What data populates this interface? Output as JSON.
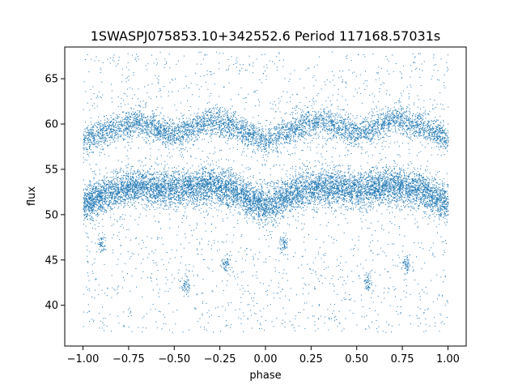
{
  "chart_data": {
    "type": "scatter",
    "title": "1SWASPJ075853.10+342552.6 Period 117168.57031s",
    "xlabel": "phase",
    "ylabel": "flux",
    "xlim": [
      -1.1,
      1.1
    ],
    "ylim": [
      35.5,
      68.5
    ],
    "x_ticks": [
      -1.0,
      -0.75,
      -0.5,
      -0.25,
      0.0,
      0.25,
      0.5,
      0.75,
      1.0
    ],
    "x_tick_labels": [
      "−1.00",
      "−0.75",
      "−0.50",
      "−0.25",
      "0.00",
      "0.25",
      "0.50",
      "0.75",
      "1.00"
    ],
    "y_ticks": [
      40,
      45,
      50,
      55,
      60,
      65
    ],
    "y_tick_labels": [
      "40",
      "45",
      "50",
      "55",
      "60",
      "65"
    ],
    "grid": false,
    "marker_color": "#1f77b4",
    "series": [
      {
        "x_range": [
          -1.0,
          1.0
        ],
        "bands": [
          {
            "phase": [
              -1.0,
              -0.9,
              -0.8,
              -0.7,
              -0.6,
              -0.5,
              -0.4,
              -0.3,
              -0.2,
              -0.1,
              0.0,
              0.1,
              0.2,
              0.3,
              0.4,
              0.5,
              0.6,
              0.7,
              0.8,
              0.9,
              1.0
            ],
            "center_flux": [
              51.2,
              52.0,
              52.8,
              53.2,
              53.0,
              52.8,
              53.0,
              53.2,
              52.8,
              51.8,
              51.0,
              51.8,
              52.8,
              53.2,
              53.0,
              52.8,
              53.0,
              53.3,
              53.0,
              52.2,
              51.2
            ],
            "spread": 1.4
          },
          {
            "phase": [
              -1.0,
              -0.9,
              -0.8,
              -0.7,
              -0.6,
              -0.5,
              -0.4,
              -0.3,
              -0.2,
              -0.1,
              0.0,
              0.1,
              0.2,
              0.3,
              0.4,
              0.5,
              0.6,
              0.7,
              0.8,
              0.9,
              1.0
            ],
            "center_flux": [
              58.3,
              59.0,
              59.8,
              60.3,
              59.5,
              58.8,
              59.6,
              60.4,
              60.0,
              59.0,
              58.2,
              59.0,
              59.8,
              60.4,
              59.8,
              59.0,
              59.6,
              60.5,
              60.2,
              59.3,
              58.4
            ],
            "spread": 1.1
          }
        ],
        "outlier_range": [
          37.0,
          68.0
        ]
      }
    ]
  }
}
